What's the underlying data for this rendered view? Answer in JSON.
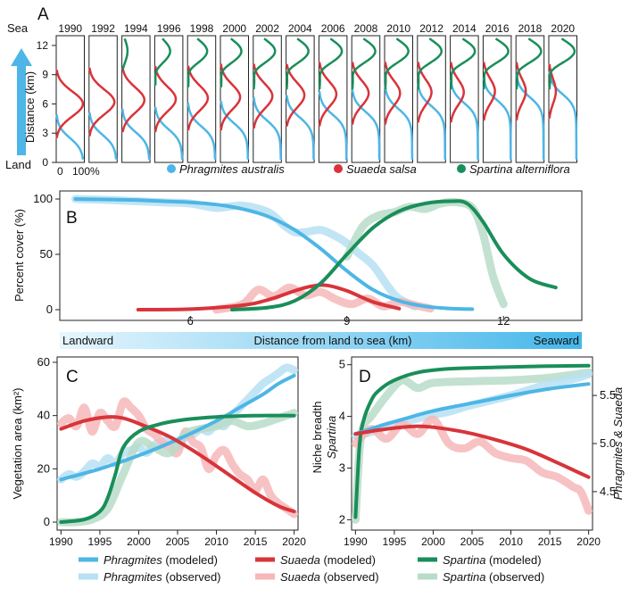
{
  "colors": {
    "phragmites": "#4DB6E6",
    "suaeda": "#D8343A",
    "spartina": "#1A8E5A",
    "phragmites_obs": "#B7E0F3",
    "suaeda_obs": "#F6B7B8",
    "spartina_obs": "#B9DCC8",
    "gradient_left": "#E6F6FD",
    "gradient_right": "#45B7EA"
  },
  "species": {
    "phragmites_full": "Phragmites australis",
    "suaeda_full": "Suaeda salsa",
    "spartina_full": "Spartina alterniflora"
  },
  "panelA": {
    "label": "A",
    "sea_label": "Sea",
    "land_label": "Land",
    "ylabel": "Distance (km)",
    "yticks": [
      "12",
      "9",
      "6",
      "3",
      "0"
    ],
    "x_min_label": "0",
    "x_max_label": "100%",
    "years": [
      "1990",
      "1992",
      "1994",
      "1996",
      "1998",
      "2000",
      "2002",
      "2004",
      "2006",
      "2008",
      "2010",
      "2012",
      "2014",
      "2016",
      "2018",
      "2020"
    ],
    "profiles": {
      "phr_center": [
        2.5,
        2.8,
        3.1,
        3.4,
        3.7,
        4.0,
        4.3,
        4.6,
        4.9,
        5.2,
        5.5,
        5.8,
        6.1,
        6.4,
        6.7,
        7.0
      ],
      "sua_center": [
        6.0,
        6.2,
        6.4,
        6.5,
        6.6,
        6.7,
        6.8,
        6.9,
        7.0,
        7.1,
        7.1,
        7.2,
        7.2,
        7.3,
        7.3,
        7.3
      ],
      "sua_amp": [
        0.95,
        0.9,
        0.8,
        0.75,
        0.72,
        0.7,
        0.68,
        0.65,
        0.62,
        0.6,
        0.55,
        0.5,
        0.48,
        0.42,
        0.35,
        0.25
      ],
      "spa_amp": [
        0.0,
        0.0,
        0.2,
        0.55,
        0.7,
        0.75,
        0.78,
        0.8,
        0.82,
        0.84,
        0.85,
        0.86,
        0.88,
        0.9,
        0.9,
        0.92
      ]
    }
  },
  "panelB": {
    "label": "B",
    "ylabel": "Percent cover (%)",
    "xlabel": "Distance from land to sea (km)",
    "landward": "Landward",
    "seaward": "Seaward",
    "chart_data": {
      "type": "line",
      "xlim": [
        3.5,
        13.5
      ],
      "ylim": [
        0,
        100
      ],
      "xticks": [
        "6",
        "9",
        "12"
      ],
      "yticks": [
        "0",
        "50",
        "100"
      ],
      "series": [
        {
          "name": "Phragmites (modeled)",
          "x": [
            3.8,
            4.5,
            5.0,
            5.5,
            6.0,
            6.5,
            7.0,
            7.5,
            8.0,
            8.5,
            9.0,
            9.5,
            10.0,
            10.5,
            11.0,
            11.4
          ],
          "y": [
            100,
            99.5,
            99,
            98,
            97,
            95,
            91,
            84,
            72,
            55,
            35,
            18,
            8,
            3,
            1,
            0.5
          ]
        },
        {
          "name": "Phragmites (observed)",
          "x": [
            3.8,
            4.5,
            5.0,
            5.5,
            6.0,
            6.5,
            7.0,
            7.5,
            7.8,
            8.0,
            8.2,
            8.5,
            8.8,
            9.0,
            9.2,
            9.5,
            9.8,
            10.0,
            10.3
          ],
          "y": [
            100,
            99,
            98,
            97,
            96,
            92,
            94,
            88,
            76,
            70,
            70,
            72,
            66,
            60,
            52,
            40,
            20,
            10,
            3
          ]
        },
        {
          "name": "Suaeda (modeled)",
          "x": [
            5.0,
            6.0,
            7.0,
            7.5,
            8.0,
            8.3,
            8.6,
            9.0,
            9.5,
            10.0
          ],
          "y": [
            0,
            0.5,
            4,
            9,
            17,
            21,
            22,
            17,
            7,
            1
          ]
        },
        {
          "name": "Suaeda (observed)",
          "x": [
            6.5,
            7.0,
            7.3,
            7.6,
            7.9,
            8.2,
            8.5,
            8.8,
            9.1,
            9.4,
            9.7,
            10.0,
            10.3,
            10.6
          ],
          "y": [
            0,
            5,
            18,
            12,
            20,
            13,
            16,
            9,
            5,
            10,
            3,
            7,
            4,
            1
          ]
        },
        {
          "name": "Spartina (modeled)",
          "x": [
            6.8,
            7.5,
            8.0,
            8.5,
            9.0,
            9.5,
            10.0,
            10.5,
            11.0,
            11.3,
            11.6,
            12.0,
            12.5,
            13.0
          ],
          "y": [
            0,
            2,
            8,
            24,
            50,
            74,
            89,
            96,
            98,
            96,
            80,
            50,
            28,
            20
          ]
        },
        {
          "name": "Spartina (observed)",
          "x": [
            9.0,
            9.3,
            9.6,
            9.9,
            10.2,
            10.5,
            10.8,
            11.1,
            11.4,
            11.6,
            11.8,
            12.0
          ],
          "y": [
            48,
            75,
            85,
            88,
            93,
            91,
            96,
            97,
            92,
            70,
            30,
            5
          ]
        }
      ]
    }
  },
  "panelC": {
    "label": "C",
    "ylabel": "Vegetation area (km²)",
    "chart_data": {
      "type": "line",
      "xlim": [
        1989.5,
        2020.5
      ],
      "ylim": [
        -3,
        62
      ],
      "xticks": [
        "1990",
        "1995",
        "2000",
        "2005",
        "2010",
        "2015",
        "2020"
      ],
      "yticks": [
        "0",
        "20",
        "40",
        "60"
      ],
      "series": [
        {
          "name": "Phragmites (modeled)",
          "x": [
            1990,
            1995,
            2000,
            2005,
            2010,
            2013,
            2016,
            2018,
            2020
          ],
          "y": [
            16,
            20,
            25,
            31,
            38,
            43,
            48,
            52,
            55
          ]
        },
        {
          "name": "Phragmites (observed)",
          "x": [
            1990,
            1991,
            1992,
            1993,
            1994,
            1995,
            1996,
            1997,
            1998,
            1999,
            2000,
            2001,
            2002,
            2003,
            2004,
            2005,
            2006,
            2007,
            2008,
            2009,
            2010,
            2011,
            2012,
            2013,
            2014,
            2015,
            2016,
            2017,
            2018,
            2019,
            2020
          ],
          "y": [
            16,
            18,
            17,
            19,
            22,
            21,
            24,
            22,
            26,
            27,
            28,
            26,
            29,
            30,
            31,
            28,
            32,
            33,
            35,
            34,
            37,
            36,
            40,
            43,
            46,
            49,
            52,
            54,
            56,
            58,
            57
          ]
        },
        {
          "name": "Suaeda (modeled)",
          "x": [
            1990,
            1993,
            1996,
            1998,
            2000,
            2004,
            2008,
            2012,
            2015,
            2018,
            2020
          ],
          "y": [
            35,
            38,
            39.5,
            39,
            37,
            32,
            25,
            17,
            11,
            6,
            4
          ]
        },
        {
          "name": "Suaeda (observed)",
          "x": [
            1990,
            1991,
            1992,
            1993,
            1994,
            1995,
            1996,
            1997,
            1998,
            1999,
            2000,
            2001,
            2002,
            2003,
            2004,
            2005,
            2006,
            2007,
            2008,
            2009,
            2010,
            2011,
            2012,
            2013,
            2014,
            2015,
            2016,
            2017,
            2018,
            2019,
            2020
          ],
          "y": [
            37,
            39,
            36,
            43,
            34,
            41,
            38,
            36,
            45,
            43,
            40,
            35,
            33,
            30,
            28,
            26,
            34,
            30,
            28,
            20,
            25,
            27,
            22,
            18,
            16,
            12,
            16,
            10,
            7,
            5,
            3
          ]
        },
        {
          "name": "Spartina (modeled)",
          "x": [
            1990,
            1993,
            1995,
            1996,
            1997,
            1998,
            2000,
            2003,
            2006,
            2010,
            2015,
            2020
          ],
          "y": [
            0,
            1,
            4,
            9,
            18,
            28,
            34,
            37,
            38.5,
            39.5,
            40,
            40
          ]
        },
        {
          "name": "Spartina (observed)",
          "x": [
            1990,
            1992,
            1994,
            1996,
            1998,
            2000,
            2002,
            2004,
            2006,
            2008,
            2010,
            2012,
            2014,
            2016,
            2018,
            2020
          ],
          "y": [
            0,
            0,
            1,
            5,
            18,
            30,
            28,
            26,
            33,
            35,
            36,
            38,
            36,
            37,
            39,
            41
          ]
        }
      ]
    }
  },
  "panelD": {
    "label": "D",
    "ylabel_left": "Niche breadth",
    "ylabel_left2": "Spartina",
    "ylabel_right": "Phragmites & Suaeda",
    "chart_data": {
      "type": "line",
      "xlim": [
        1989.5,
        2020.5
      ],
      "ylim_left": [
        1.8,
        5.15
      ],
      "ylim_right": [
        4.1,
        5.9
      ],
      "xticks": [
        "1990",
        "1995",
        "2000",
        "2005",
        "2010",
        "2015",
        "2020"
      ],
      "yticks_left": [
        "2",
        "3",
        "4",
        "5"
      ],
      "yticks_right": [
        "4.5",
        "5.0",
        "5.5"
      ],
      "series": [
        {
          "name": "Spartina (modeled)",
          "axis": "left",
          "x": [
            1990,
            1990.5,
            1991,
            1992,
            1993,
            1995,
            1998,
            2002,
            2008,
            2014,
            2020
          ],
          "y": [
            2.05,
            3.4,
            3.9,
            4.3,
            4.5,
            4.7,
            4.85,
            4.92,
            4.95,
            4.97,
            4.98
          ]
        },
        {
          "name": "Spartina (observed)",
          "axis": "left",
          "x": [
            1990,
            1990.5,
            1991,
            1992,
            1994,
            1996,
            1998,
            2000,
            2005,
            2010,
            2015,
            2020
          ],
          "y": [
            2.0,
            3.3,
            3.8,
            4.0,
            4.4,
            4.7,
            4.55,
            4.65,
            4.68,
            4.7,
            4.75,
            4.85
          ]
        },
        {
          "name": "Phragmites (modeled)",
          "axis": "right",
          "x": [
            1990,
            1993,
            1996,
            2000,
            2005,
            2010,
            2015,
            2020
          ],
          "y": [
            5.1,
            5.18,
            5.25,
            5.34,
            5.42,
            5.5,
            5.57,
            5.62
          ]
        },
        {
          "name": "Phragmites (observed)",
          "axis": "right",
          "x": [
            1990,
            1992,
            1994,
            1996,
            1998,
            2000,
            2002,
            2004,
            2006,
            2008,
            2010,
            2012,
            2014,
            2016,
            2018,
            2020
          ],
          "y": [
            5.08,
            5.12,
            5.18,
            5.22,
            5.26,
            5.3,
            5.33,
            5.38,
            5.42,
            5.46,
            5.5,
            5.55,
            5.6,
            5.64,
            5.67,
            5.72
          ]
        },
        {
          "name": "Suaeda (modeled)",
          "axis": "right",
          "x": [
            1990,
            1993,
            1996,
            1998,
            2000,
            2004,
            2008,
            2012,
            2016,
            2020
          ],
          "y": [
            5.1,
            5.14,
            5.17,
            5.18,
            5.17,
            5.12,
            5.04,
            4.94,
            4.8,
            4.65
          ]
        },
        {
          "name": "Suaeda (observed)",
          "axis": "right",
          "x": [
            1990,
            1992,
            1994,
            1996,
            1998,
            2000,
            2002,
            2004,
            2006,
            2008,
            2010,
            2012,
            2014,
            2016,
            2018,
            2019,
            2020
          ],
          "y": [
            5.0,
            5.15,
            5.05,
            5.2,
            5.1,
            5.25,
            5.0,
            4.95,
            5.02,
            4.9,
            4.85,
            4.82,
            4.7,
            4.65,
            4.55,
            4.5,
            4.3
          ]
        }
      ]
    }
  },
  "legend": {
    "phragmites": "Phragmites",
    "suaeda": "Suaeda",
    "spartina": "Spartina",
    "modeled": "(modeled)",
    "observed": "(observed)"
  }
}
